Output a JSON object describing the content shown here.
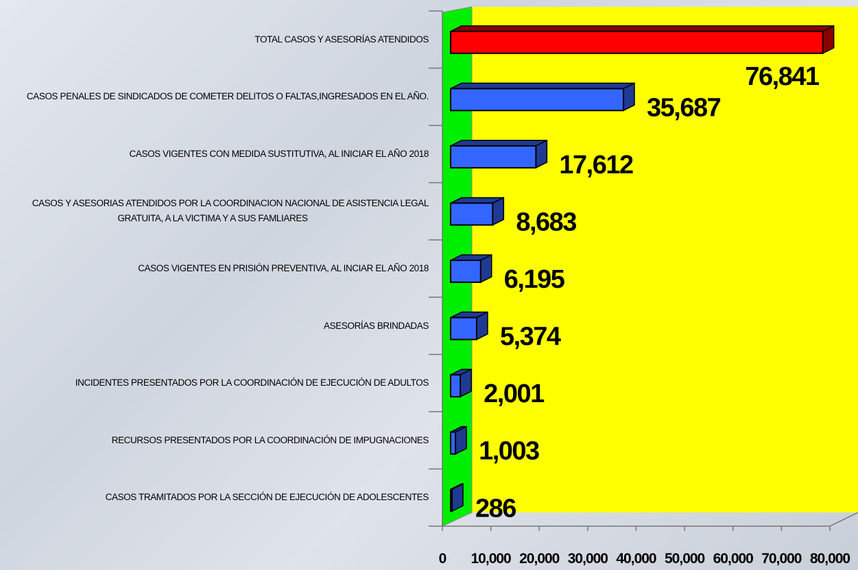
{
  "chart_data": {
    "type": "bar3d-horizontal",
    "categories": [
      "TOTAL CASOS Y ASESORÍAS ATENDIDOS",
      "CASOS PENALES DE SINDICADOS DE COMETER DELITOS O FALTAS,INGRESADOS EN EL AÑO.",
      "CASOS VIGENTES CON MEDIDA SUSTITUTIVA, AL INICIAR EL AÑO 2018",
      "CASOS Y ASESORIAS ATENDIDOS POR LA COORDINACION NACIONAL DE ASISTENCIA LEGAL GRATUITA, A LA VICTIMA Y A SUS FAMLIARES",
      "CASOS VIGENTES EN PRISIÓN PREVENTIVA, AL INCIAR EL AÑO 2018",
      "ASESORÍAS BRINDADAS",
      "INCIDENTES PRESENTADOS POR LA COORDINACIÓN DE EJECUCIÓN DE ADULTOS",
      "RECURSOS PRESENTADOS POR LA COORDINACIÓN DE IMPUGNACIONES",
      "CASOS TRAMITADOS POR LA SECCIÓN DE EJECUCIÓN DE ADOLESCENTES"
    ],
    "values": [
      76841,
      35687,
      17612,
      8683,
      6195,
      5374,
      2001,
      1003,
      286
    ],
    "value_labels": [
      "76,841",
      "35,687",
      "17,612",
      "8,683",
      "6,195",
      "5,374",
      "2,001",
      "1,003",
      "286"
    ],
    "colors": [
      "#ff0000",
      "#3366ff",
      "#3366ff",
      "#3366ff",
      "#3366ff",
      "#3366ff",
      "#3366ff",
      "#3366ff",
      "#3366ff"
    ],
    "xlim": [
      0,
      80000
    ],
    "xticks": [
      0,
      {
        "value": 10000,
        "label": "10,000"
      },
      {
        "value": 20000,
        "label": "20,000"
      },
      {
        "value": 30000,
        "label": "30,000"
      },
      {
        "value": 40000,
        "label": "40,000"
      },
      {
        "value": 50000,
        "label": "50,000"
      },
      {
        "value": 60000,
        "label": "60,000"
      },
      {
        "value": 70000,
        "label": "70,000"
      },
      {
        "value": 80000,
        "label": "80,000"
      }
    ]
  }
}
